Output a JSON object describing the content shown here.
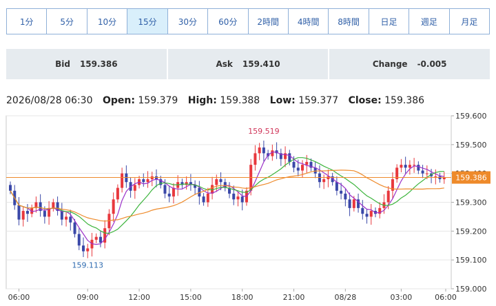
{
  "timeframes": [
    {
      "label": "1分",
      "active": false
    },
    {
      "label": "5分",
      "active": false
    },
    {
      "label": "10分",
      "active": false
    },
    {
      "label": "15分",
      "active": true
    },
    {
      "label": "30分",
      "active": false
    },
    {
      "label": "60分",
      "active": false
    },
    {
      "label": "2時間",
      "active": false
    },
    {
      "label": "4時間",
      "active": false
    },
    {
      "label": "8時間",
      "active": false
    },
    {
      "label": "日足",
      "active": false
    },
    {
      "label": "週足",
      "active": false
    },
    {
      "label": "月足",
      "active": false
    }
  ],
  "quotes": {
    "bid_label": "Bid",
    "bid_value": "159.386",
    "ask_label": "Ask",
    "ask_value": "159.410",
    "change_label": "Change",
    "change_value": "-0.005"
  },
  "ohlc": {
    "datetime": "2026/08/28 06:30",
    "open_label": "Open:",
    "open": "159.379",
    "high_label": "High:",
    "high": "159.388",
    "low_label": "Low:",
    "low": "159.377",
    "close_label": "Close:",
    "close": "159.386"
  },
  "colors": {
    "up": "#e8383d",
    "down": "#3a48a8",
    "ma_short": "#9b30c8",
    "ma_mid": "#3cb43c",
    "ma_long": "#ee8a2a",
    "price_line": "#ee8a2a",
    "price_tag": "#ee8a2a"
  },
  "chart_data": {
    "type": "candlestick",
    "ylim": [
      159.0,
      159.6
    ],
    "yticks": [
      "159.600",
      "159.500",
      "159.400",
      "159.300",
      "159.200",
      "159.100",
      "159.000"
    ],
    "xticks": [
      "06:00",
      "09:00",
      "12:00",
      "15:00",
      "18:00",
      "21:00",
      "08/28",
      "03:00",
      "06:00"
    ],
    "current_price": "159.386",
    "high_annotation": "159.519",
    "low_annotation": "159.113",
    "closes": [
      159.34,
      159.29,
      159.24,
      159.27,
      159.26,
      159.28,
      159.3,
      159.27,
      159.25,
      159.28,
      159.3,
      159.27,
      159.24,
      159.25,
      159.23,
      159.19,
      159.15,
      159.13,
      159.14,
      159.17,
      159.18,
      159.16,
      159.21,
      159.26,
      159.31,
      159.35,
      159.4,
      159.37,
      159.34,
      159.36,
      159.38,
      159.37,
      159.38,
      159.39,
      159.38,
      159.36,
      159.33,
      159.32,
      159.35,
      159.37,
      159.36,
      159.37,
      159.36,
      159.35,
      159.32,
      159.3,
      159.33,
      159.36,
      159.38,
      159.37,
      159.35,
      159.33,
      159.31,
      159.32,
      159.3,
      159.34,
      159.43,
      159.47,
      159.49,
      159.47,
      159.46,
      159.48,
      159.47,
      159.45,
      159.47,
      159.44,
      159.42,
      159.41,
      159.43,
      159.44,
      159.42,
      159.4,
      159.37,
      159.38,
      159.39,
      159.37,
      159.34,
      159.33,
      159.31,
      159.28,
      159.31,
      159.28,
      159.26,
      159.25,
      159.27,
      159.26,
      159.28,
      159.3,
      159.34,
      159.38,
      159.42,
      159.43,
      159.42,
      159.43,
      159.43,
      159.41,
      159.4,
      159.4,
      159.39,
      159.39,
      159.38,
      159.386
    ]
  }
}
